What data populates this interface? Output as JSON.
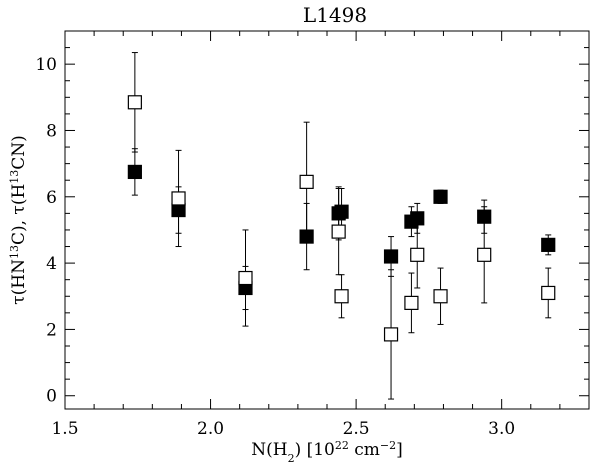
{
  "chart_data": {
    "type": "scatter",
    "title": "L1498",
    "xlabel": {
      "parts": [
        {
          "t": "N(H"
        },
        {
          "t": "2",
          "sub": true
        },
        {
          "t": ")  [10"
        },
        {
          "t": "22",
          "sup": true
        },
        {
          "t": " cm"
        },
        {
          "t": "−2",
          "sup": true
        },
        {
          "t": "]"
        }
      ]
    },
    "ylabel": {
      "parts": [
        {
          "t": "τ(HN"
        },
        {
          "t": "13",
          "sup": true
        },
        {
          "t": "C),  τ(H"
        },
        {
          "t": "13",
          "sup": true
        },
        {
          "t": "CN)"
        }
      ]
    },
    "xlim": [
      1.5,
      3.3
    ],
    "ylim": [
      -0.4,
      11.0
    ],
    "xticks": [
      1.5,
      2.0,
      2.5,
      3.0
    ],
    "xtick_labels": [
      "1.5",
      "2.0",
      "2.5",
      "3.0"
    ],
    "yticks": [
      0,
      2,
      4,
      6,
      8,
      10
    ],
    "ytick_labels": [
      "0",
      "2",
      "4",
      "6",
      "8",
      "10"
    ],
    "x_minor_step": 0.1,
    "y_minor_step": 0.5,
    "grid": false,
    "series": [
      {
        "marker": "filled-square",
        "color": "#000000",
        "points": [
          {
            "x": 1.74,
            "y": 6.75,
            "err": 0.7
          },
          {
            "x": 1.89,
            "y": 5.6,
            "err": 0.7
          },
          {
            "x": 2.12,
            "y": 3.25,
            "err": 0.65
          },
          {
            "x": 2.33,
            "y": 4.8,
            "err": 1.0
          },
          {
            "x": 2.44,
            "y": 5.5,
            "err": 0.8
          },
          {
            "x": 2.45,
            "y": 5.55,
            "err": 0.7
          },
          {
            "x": 2.62,
            "y": 4.2,
            "err": 0.6
          },
          {
            "x": 2.69,
            "y": 5.25,
            "err": 0.45
          },
          {
            "x": 2.71,
            "y": 5.35,
            "err": 0.45
          },
          {
            "x": 2.79,
            "y": 6.0,
            "err": 0.2
          },
          {
            "x": 2.94,
            "y": 5.4,
            "err": 0.5
          },
          {
            "x": 3.16,
            "y": 4.55,
            "err": 0.3
          }
        ]
      },
      {
        "marker": "open-square",
        "color": "#000000",
        "points": [
          {
            "x": 1.74,
            "y": 8.85,
            "err": 1.5
          },
          {
            "x": 1.89,
            "y": 5.95,
            "err": 1.45
          },
          {
            "x": 2.12,
            "y": 3.55,
            "err": 1.45
          },
          {
            "x": 2.33,
            "y": 6.45,
            "err": 1.8
          },
          {
            "x": 2.44,
            "y": 4.95,
            "err": 1.3
          },
          {
            "x": 2.45,
            "y": 3.0,
            "err": 0.65
          },
          {
            "x": 2.62,
            "y": 1.85,
            "err": 1.95
          },
          {
            "x": 2.69,
            "y": 2.8,
            "err": 0.9
          },
          {
            "x": 2.71,
            "y": 4.25,
            "err": 1.0
          },
          {
            "x": 2.79,
            "y": 3.0,
            "err": 0.85
          },
          {
            "x": 2.94,
            "y": 4.25,
            "err": 1.45
          },
          {
            "x": 3.16,
            "y": 3.1,
            "err": 0.75
          }
        ]
      }
    ]
  }
}
